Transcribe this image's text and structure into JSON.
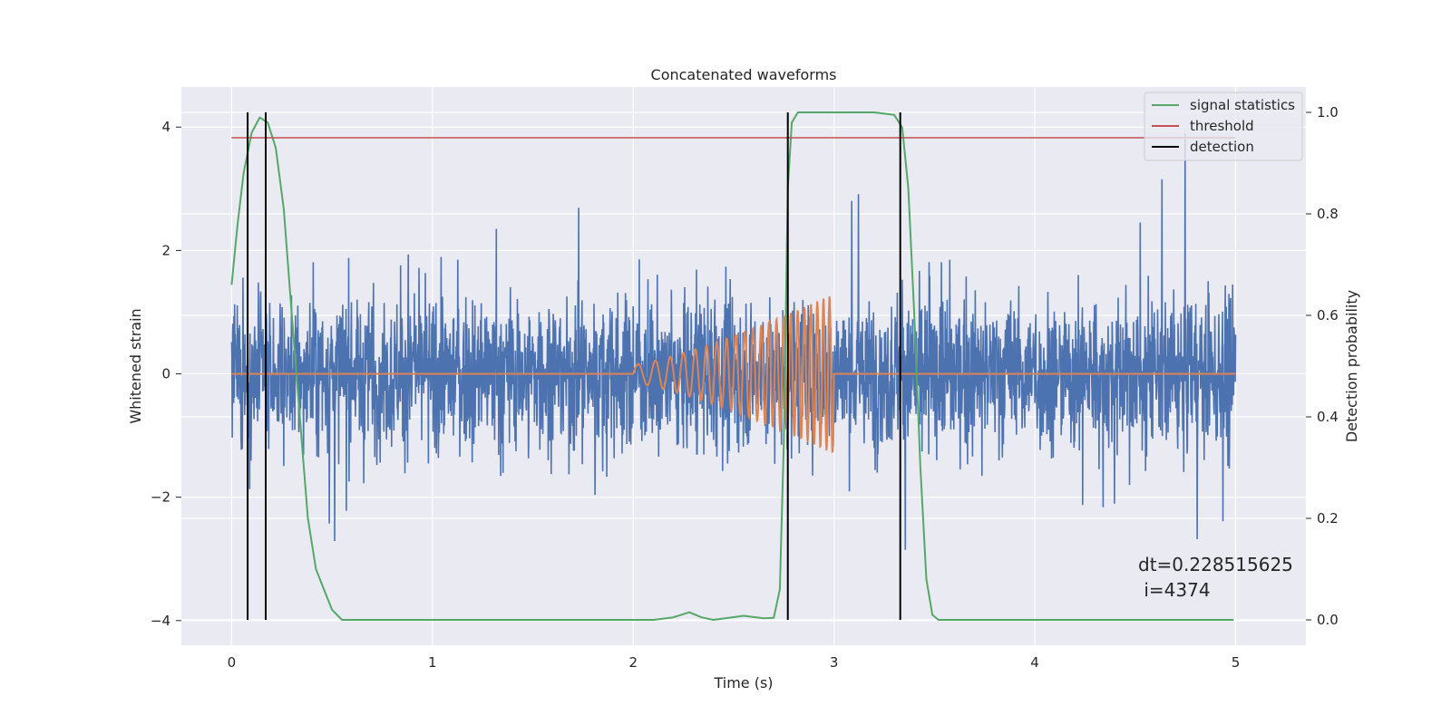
{
  "chart_data": {
    "type": "line",
    "title": "Concatenated waveforms",
    "xlabel": "Time (s)",
    "ylabel_left": "Whitened strain",
    "ylabel_right": "Detection probability",
    "xlim": [
      -0.25,
      5.35
    ],
    "ylim_left": [
      -4.4,
      4.65
    ],
    "ylim_right": [
      -0.05,
      1.05
    ],
    "xticks": [
      0,
      1,
      2,
      3,
      4,
      5
    ],
    "xtick_labels": [
      "0",
      "1",
      "2",
      "3",
      "4",
      "5"
    ],
    "yticks_left": [
      -4,
      -2,
      0,
      2,
      4
    ],
    "ytick_labels_left": [
      "−4",
      "−2",
      "0",
      "2",
      "4"
    ],
    "yticks_right": [
      0.0,
      0.2,
      0.4,
      0.6,
      0.8,
      1.0
    ],
    "ytick_labels_right": [
      "0.0",
      "0.2",
      "0.4",
      "0.6",
      "0.8",
      "1.0"
    ],
    "grid": true,
    "legend_position": "top-right",
    "series": [
      {
        "name": "whitened strain",
        "axis": "left",
        "color": "#4c72b0",
        "kind": "noise",
        "x_range": [
          0,
          5
        ],
        "typical_amplitude": 1.0,
        "max_abs": 3.9
      },
      {
        "name": "injected waveform",
        "axis": "left",
        "color": "#dd8452",
        "kind": "chirp",
        "x_range": [
          0,
          5
        ],
        "chirp_start": 2.0,
        "chirp_end": 3.0,
        "amp_start": 0.15,
        "amp_end": 1.3
      },
      {
        "name": "signal statistics",
        "axis": "right",
        "color": "#55a868",
        "points": [
          [
            0.0,
            0.66
          ],
          [
            0.03,
            0.78
          ],
          [
            0.06,
            0.88
          ],
          [
            0.1,
            0.96
          ],
          [
            0.14,
            0.99
          ],
          [
            0.18,
            0.98
          ],
          [
            0.22,
            0.93
          ],
          [
            0.26,
            0.81
          ],
          [
            0.3,
            0.6
          ],
          [
            0.34,
            0.4
          ],
          [
            0.38,
            0.2
          ],
          [
            0.42,
            0.1
          ],
          [
            0.46,
            0.06
          ],
          [
            0.5,
            0.02
          ],
          [
            0.55,
            0.0
          ],
          [
            0.6,
            0.0
          ],
          [
            2.1,
            0.0
          ],
          [
            2.2,
            0.005
          ],
          [
            2.28,
            0.015
          ],
          [
            2.34,
            0.005
          ],
          [
            2.4,
            0.0
          ],
          [
            2.55,
            0.008
          ],
          [
            2.65,
            0.003
          ],
          [
            2.7,
            0.004
          ],
          [
            2.73,
            0.06
          ],
          [
            2.75,
            0.35
          ],
          [
            2.77,
            0.85
          ],
          [
            2.79,
            0.98
          ],
          [
            2.82,
            1.0
          ],
          [
            3.2,
            1.0
          ],
          [
            3.3,
            0.995
          ],
          [
            3.34,
            0.97
          ],
          [
            3.37,
            0.85
          ],
          [
            3.4,
            0.6
          ],
          [
            3.43,
            0.3
          ],
          [
            3.46,
            0.08
          ],
          [
            3.49,
            0.01
          ],
          [
            3.52,
            0.0
          ],
          [
            4.5,
            0.0
          ],
          [
            4.99,
            0.0
          ]
        ]
      },
      {
        "name": "threshold",
        "axis": "right",
        "color": "#c44e52",
        "value": 0.95,
        "x_range": [
          0,
          5
        ]
      }
    ],
    "detections": {
      "name": "detection",
      "color": "#000000",
      "x": [
        0.08,
        0.17,
        2.77,
        3.33
      ]
    },
    "legend": [
      "signal statistics",
      "threshold",
      "detection"
    ],
    "annotation": [
      "dt=0.228515625",
      " i=4374"
    ]
  },
  "colors": {
    "axes_background": "#eaeaf2",
    "grid": "#ffffff",
    "figure_background": "#ffffff"
  }
}
